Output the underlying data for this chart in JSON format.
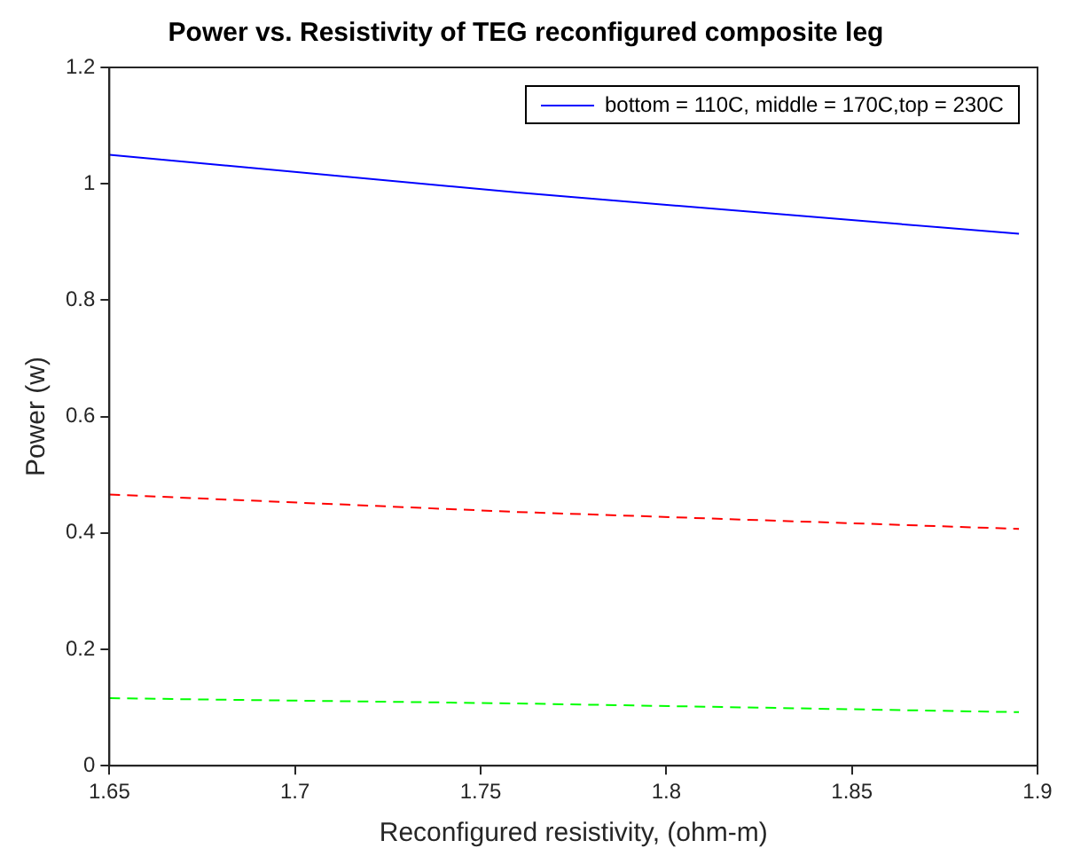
{
  "chart_data": {
    "type": "line",
    "title": "Power vs. Resistivity of TEG reconfigured composite leg",
    "xlabel": "Reconfigured resistivity, (ohm-m)",
    "ylabel": "Power (w)",
    "x": [
      1.65,
      1.76,
      1.895
    ],
    "series": [
      {
        "name": "bottom = 110C, middle = 170C,top = 230C",
        "color": "#0000ff",
        "values": [
          1.05,
          0.985,
          0.914
        ],
        "line_style": "solid"
      },
      {
        "color": "#ff0000",
        "values": [
          0.466,
          0.436,
          0.407
        ],
        "line_style": "dashed"
      },
      {
        "color": "#00ff00",
        "values": [
          0.116,
          0.107,
          0.092
        ],
        "line_style": "dashed"
      }
    ],
    "xlim": [
      1.65,
      1.9
    ],
    "xticks": [
      1.65,
      1.7,
      1.75,
      1.8,
      1.85,
      1.9
    ],
    "ylim": [
      0,
      1.2
    ],
    "yticks": [
      0,
      0.2,
      0.4,
      0.6,
      0.8,
      1,
      1.2
    ],
    "grid": false,
    "legend": "top right",
    "marker": "none"
  }
}
